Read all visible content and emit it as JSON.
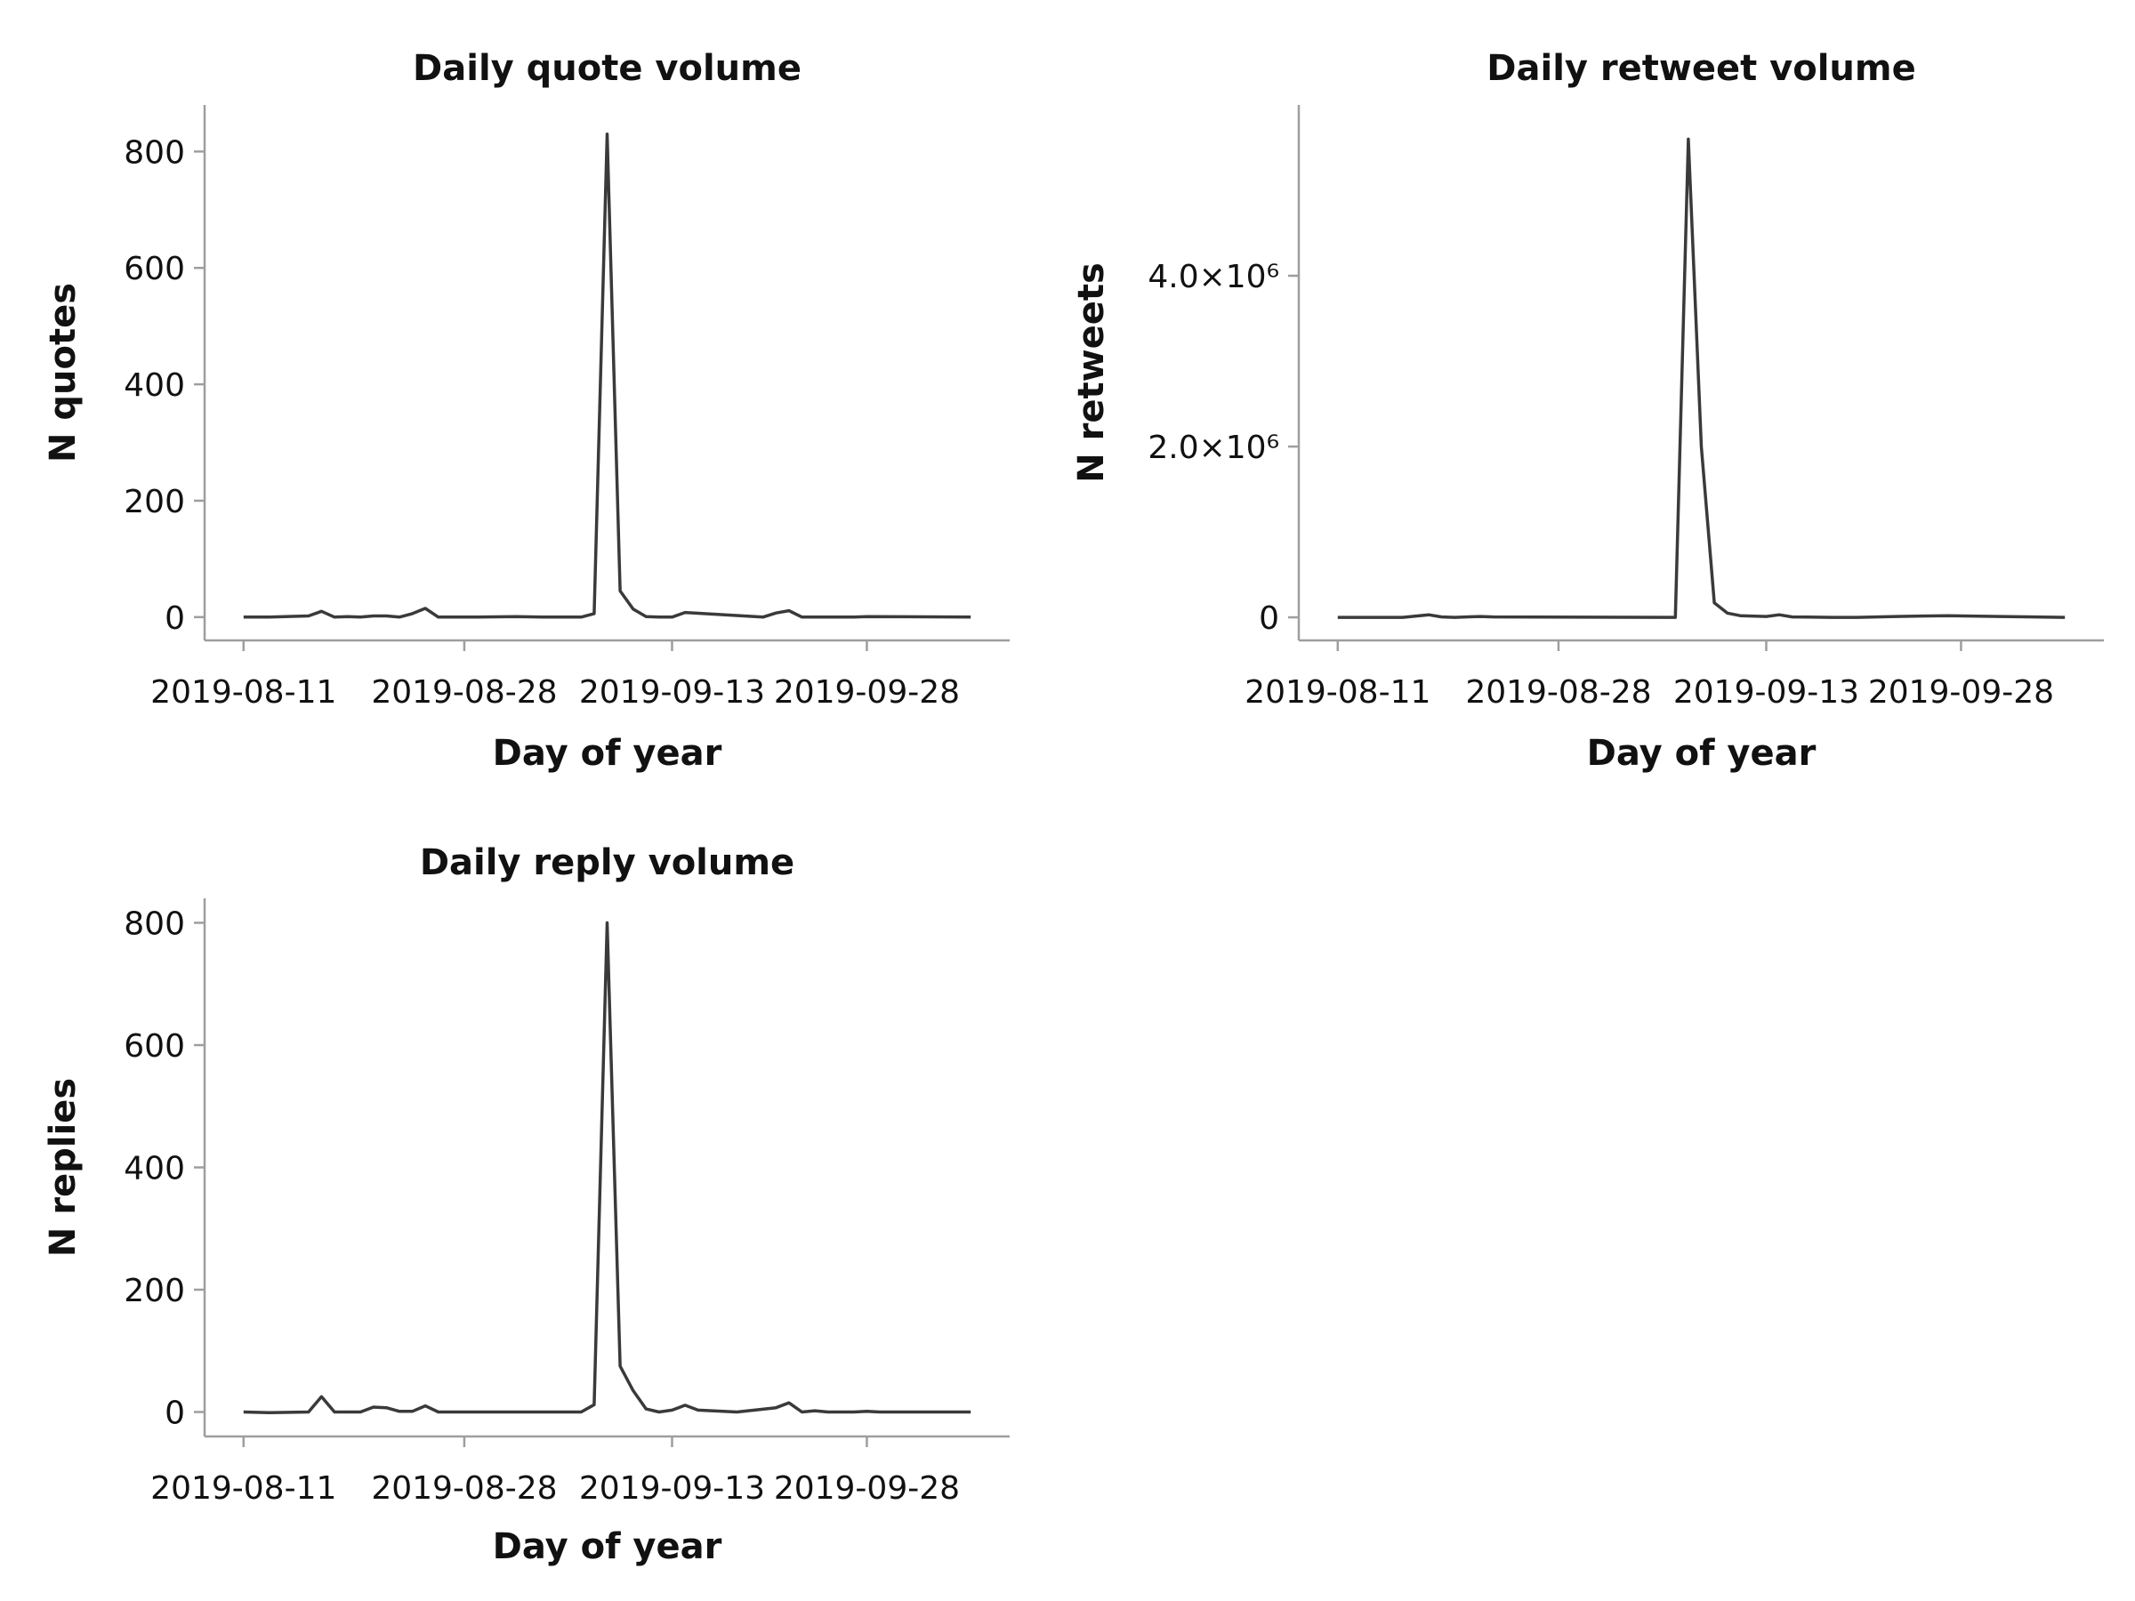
{
  "chart_data": [
    {
      "type": "line",
      "title": "Daily quote volume",
      "xlabel": "Day of year",
      "ylabel": "N quotes",
      "x_tick_labels": [
        "2019-08-11",
        "2019-08-28",
        "2019-09-13",
        "2019-09-28"
      ],
      "y_tick_labels": [
        "0",
        "200",
        "400",
        "600",
        "800"
      ],
      "y_tick_values": [
        0,
        200,
        400,
        600,
        800
      ],
      "ylim": [
        -40,
        880
      ],
      "xlim": [
        "2019-08-08",
        "2019-10-09"
      ],
      "grid": false,
      "series": [
        {
          "x": [
            "2019-08-11",
            "2019-08-13",
            "2019-08-16",
            "2019-08-17",
            "2019-08-18",
            "2019-08-19",
            "2019-08-20",
            "2019-08-21",
            "2019-08-22",
            "2019-08-23",
            "2019-08-24",
            "2019-08-25",
            "2019-08-26",
            "2019-08-27",
            "2019-08-29",
            "2019-09-01",
            "2019-09-03",
            "2019-09-06",
            "2019-09-07",
            "2019-09-08",
            "2019-09-09",
            "2019-09-10",
            "2019-09-11",
            "2019-09-12",
            "2019-09-13",
            "2019-09-14",
            "2019-09-20",
            "2019-09-21",
            "2019-09-22",
            "2019-09-23",
            "2019-09-25",
            "2019-09-27",
            "2019-09-28",
            "2019-10-06"
          ],
          "values": [
            0,
            0,
            2,
            10,
            0,
            1,
            0,
            2,
            2,
            0,
            6,
            15,
            0,
            0,
            0,
            1,
            0,
            0,
            6,
            830,
            45,
            14,
            1,
            0,
            0,
            8,
            0,
            7,
            11,
            0,
            0,
            0,
            1,
            0
          ]
        }
      ]
    },
    {
      "type": "line",
      "title": "Daily retweet volume",
      "xlabel": "Day of year",
      "ylabel": "N retweets",
      "x_tick_labels": [
        "2019-08-11",
        "2019-08-28",
        "2019-09-13",
        "2019-09-28"
      ],
      "y_tick_labels": [
        "0",
        "2.0×10⁶",
        "4.0×10⁶"
      ],
      "y_tick_values": [
        0,
        2000000,
        4000000
      ],
      "ylim": [
        -270000,
        6000000
      ],
      "xlim": [
        "2019-08-08",
        "2019-10-09"
      ],
      "grid": false,
      "series": [
        {
          "x": [
            "2019-08-11",
            "2019-08-16",
            "2019-08-18",
            "2019-08-19",
            "2019-08-20",
            "2019-08-22",
            "2019-08-23",
            "2019-09-06",
            "2019-09-07",
            "2019-09-08",
            "2019-09-09",
            "2019-09-10",
            "2019-09-11",
            "2019-09-13",
            "2019-09-14",
            "2019-09-15",
            "2019-09-18",
            "2019-09-20",
            "2019-09-23",
            "2019-09-27",
            "2019-10-01",
            "2019-10-06"
          ],
          "values": [
            0,
            0,
            30000,
            5000,
            0,
            10000,
            5000,
            0,
            5600000,
            2000000,
            170000,
            50000,
            20000,
            10000,
            30000,
            5000,
            0,
            0,
            10000,
            20000,
            10000,
            0
          ]
        }
      ]
    },
    {
      "type": "line",
      "title": "Daily reply volume",
      "xlabel": "Day of year",
      "ylabel": "N replies",
      "x_tick_labels": [
        "2019-08-11",
        "2019-08-28",
        "2019-09-13",
        "2019-09-28"
      ],
      "y_tick_labels": [
        "0",
        "200",
        "400",
        "600",
        "800"
      ],
      "y_tick_values": [
        0,
        200,
        400,
        600,
        800
      ],
      "ylim": [
        -40,
        840
      ],
      "xlim": [
        "2019-08-08",
        "2019-10-09"
      ],
      "grid": false,
      "series": [
        {
          "x": [
            "2019-08-11",
            "2019-08-13",
            "2019-08-16",
            "2019-08-17",
            "2019-08-18",
            "2019-08-20",
            "2019-08-21",
            "2019-08-22",
            "2019-08-23",
            "2019-08-24",
            "2019-08-25",
            "2019-08-26",
            "2019-08-27",
            "2019-09-03",
            "2019-09-06",
            "2019-09-07",
            "2019-09-08",
            "2019-09-09",
            "2019-09-10",
            "2019-09-11",
            "2019-09-12",
            "2019-09-13",
            "2019-09-14",
            "2019-09-15",
            "2019-09-18",
            "2019-09-21",
            "2019-09-22",
            "2019-09-23",
            "2019-09-24",
            "2019-09-25",
            "2019-09-27",
            "2019-09-28",
            "2019-09-29",
            "2019-10-06"
          ],
          "values": [
            0,
            -1,
            0,
            25,
            0,
            0,
            8,
            7,
            1,
            1,
            10,
            0,
            0,
            0,
            0,
            12,
            800,
            75,
            35,
            5,
            0,
            3,
            11,
            3,
            0,
            7,
            15,
            0,
            2,
            0,
            0,
            1,
            0,
            0
          ]
        }
      ]
    }
  ]
}
